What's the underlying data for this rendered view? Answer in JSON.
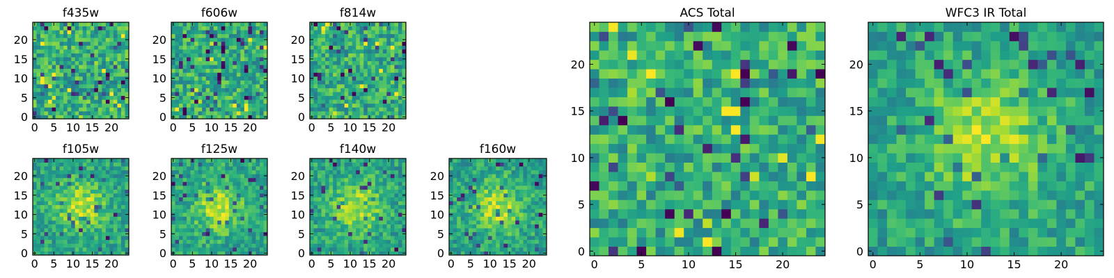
{
  "chart_data": [
    {
      "type": "heatmap",
      "title": "f435w",
      "grid_size": 25,
      "colormap": "viridis",
      "xticks": [
        "0",
        "5",
        "10",
        "15",
        "20"
      ],
      "yticks": [
        "0",
        "5",
        "10",
        "15",
        "20"
      ],
      "xlim": [
        -0.5,
        24.5
      ],
      "ylim": [
        -0.5,
        24.5
      ],
      "pattern": "noise"
    },
    {
      "type": "heatmap",
      "title": "f606w",
      "grid_size": 25,
      "colormap": "viridis",
      "xticks": [
        "0",
        "5",
        "10",
        "15",
        "20"
      ],
      "yticks": [
        "0",
        "5",
        "10",
        "15",
        "20"
      ],
      "xlim": [
        -0.5,
        24.5
      ],
      "ylim": [
        -0.5,
        24.5
      ],
      "pattern": "noise"
    },
    {
      "type": "heatmap",
      "title": "f814w",
      "grid_size": 25,
      "colormap": "viridis",
      "xticks": [
        "0",
        "5",
        "10",
        "15",
        "20"
      ],
      "yticks": [
        "0",
        "5",
        "10",
        "15",
        "20"
      ],
      "xlim": [
        -0.5,
        24.5
      ],
      "ylim": [
        -0.5,
        24.5
      ],
      "pattern": "noise"
    },
    {
      "type": "heatmap",
      "title": "f105w",
      "grid_size": 25,
      "colormap": "viridis",
      "xticks": [
        "0",
        "5",
        "10",
        "15",
        "20"
      ],
      "yticks": [
        "0",
        "5",
        "10",
        "15",
        "20"
      ],
      "xlim": [
        -0.5,
        24.5
      ],
      "ylim": [
        -0.5,
        24.5
      ],
      "pattern": "central source"
    },
    {
      "type": "heatmap",
      "title": "f125w",
      "grid_size": 25,
      "colormap": "viridis",
      "xticks": [
        "0",
        "5",
        "10",
        "15",
        "20"
      ],
      "yticks": [
        "0",
        "5",
        "10",
        "15",
        "20"
      ],
      "xlim": [
        -0.5,
        24.5
      ],
      "ylim": [
        -0.5,
        24.5
      ],
      "pattern": "central source"
    },
    {
      "type": "heatmap",
      "title": "f140w",
      "grid_size": 25,
      "colormap": "viridis",
      "xticks": [
        "0",
        "5",
        "10",
        "15",
        "20"
      ],
      "yticks": [
        "0",
        "5",
        "10",
        "15",
        "20"
      ],
      "xlim": [
        -0.5,
        24.5
      ],
      "ylim": [
        -0.5,
        24.5
      ],
      "pattern": "central source"
    },
    {
      "type": "heatmap",
      "title": "f160w",
      "grid_size": 25,
      "colormap": "viridis",
      "xticks": [
        "0",
        "5",
        "10",
        "15",
        "20"
      ],
      "yticks": [
        "0",
        "5",
        "10",
        "15",
        "20"
      ],
      "xlim": [
        -0.5,
        24.5
      ],
      "ylim": [
        -0.5,
        24.5
      ],
      "pattern": "central source"
    },
    {
      "type": "heatmap",
      "title": "ACS Total",
      "grid_size": 25,
      "colormap": "viridis",
      "xticks": [
        "0",
        "5",
        "10",
        "15",
        "20"
      ],
      "yticks": [
        "0",
        "5",
        "10",
        "15",
        "20"
      ],
      "xlim": [
        -0.5,
        24.5
      ],
      "ylim": [
        -0.5,
        24.5
      ],
      "pattern": "noise"
    },
    {
      "type": "heatmap",
      "title": "WFC3 IR Total",
      "grid_size": 25,
      "colormap": "viridis",
      "xticks": [
        "0",
        "5",
        "10",
        "15",
        "20"
      ],
      "yticks": [
        "0",
        "5",
        "10",
        "15",
        "20"
      ],
      "xlim": [
        -0.5,
        24.5
      ],
      "ylim": [
        -0.5,
        24.5
      ],
      "pattern": "central source"
    }
  ]
}
